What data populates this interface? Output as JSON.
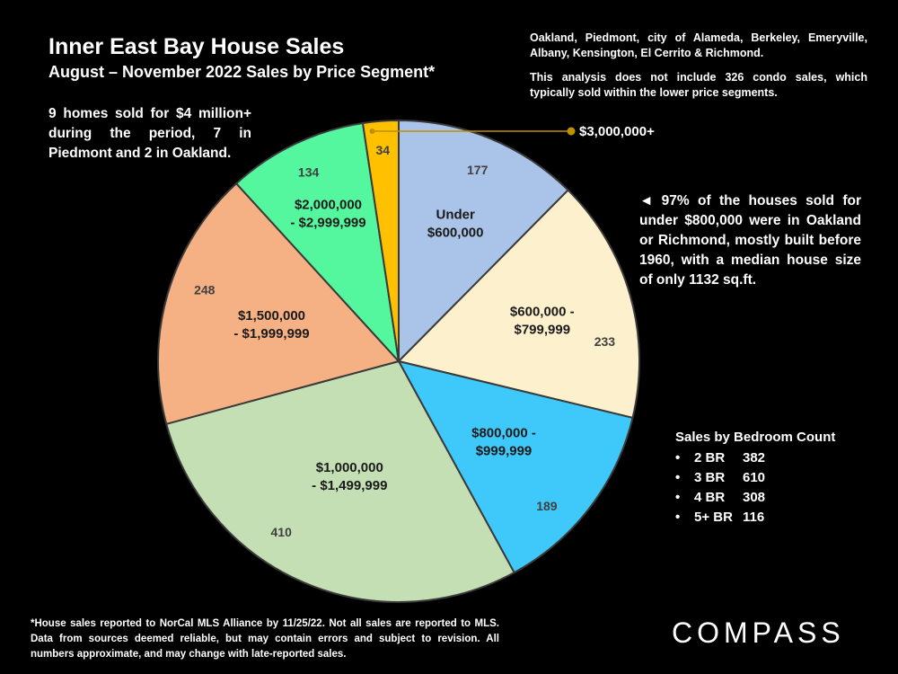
{
  "title": "Inner East Bay House Sales",
  "subtitle": "August – November 2022 Sales by Price Segment*",
  "notes": {
    "homes_4m": "9 homes sold for $4 million+ during the period, 7 in Piedmont and 2 in Oakland.",
    "cities": "Oakland, Piedmont, city of Alameda, Berkeley, Emeryville, Albany, Kensington, El Cerrito & Richmond.",
    "condos": "This analysis does not include 326 condo sales, which typically sold within the lower price segments.",
    "under_800k": "◄ 97% of the houses sold for under $800,000 were in Oakland or Richmond, mostly built before 1960, with a median house size of only 1132 sq.ft."
  },
  "bedroom": {
    "title": "Sales by Bedroom Count",
    "bullet": "•",
    "rows": [
      {
        "label": "2 BR",
        "value": "382"
      },
      {
        "label": "3 BR",
        "value": "610"
      },
      {
        "label": "4 BR",
        "value": "308"
      },
      {
        "label": "5+ BR",
        "value": "116"
      }
    ]
  },
  "footnote": "*House sales reported to NorCal MLS Alliance by 11/25/22. Not all sales are reported to MLS. Data from sources deemed reliable, but may contain errors and subject to revision. All numbers approximate, and may change with late-reported sales.",
  "brand": "COMPASS",
  "chart_data": {
    "type": "pie",
    "title": "Inner East Bay House Sales",
    "subtitle": "August – November 2022 Sales by Price Segment*",
    "start": "12 o'clock, clockwise",
    "slices": [
      {
        "lines": [
          "Under",
          "$600,000"
        ],
        "value": 177,
        "color": "#a9c4e8"
      },
      {
        "lines": [
          "$600,000 -",
          "$799,999"
        ],
        "value": 233,
        "color": "#fdf0cd"
      },
      {
        "lines": [
          "$800,000 -",
          "$999,999"
        ],
        "value": 189,
        "color": "#3fc9fb"
      },
      {
        "lines": [
          "$1,000,000",
          "- $1,499,999"
        ],
        "value": 410,
        "color": "#c5dfb4"
      },
      {
        "lines": [
          "$1,500,000",
          "- $1,999,999"
        ],
        "value": 248,
        "color": "#f5b183"
      },
      {
        "lines": [
          "$2,000,000",
          "- $2,999,999"
        ],
        "value": 134,
        "color": "#55f79e"
      },
      {
        "lines": [
          "$3,000,000+"
        ],
        "value": 34,
        "color": "#ffc000",
        "callout": true
      }
    ],
    "callout_marker_color": "#bf9000"
  }
}
